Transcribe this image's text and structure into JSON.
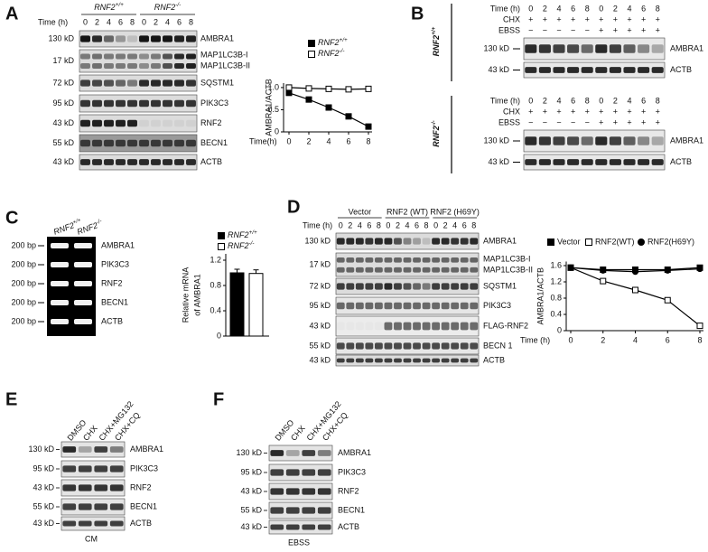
{
  "panels": {
    "A": {
      "label": "A",
      "time_label": "Time (h)",
      "groups": [
        {
          "text": "RNF2",
          "sup": "+/+"
        },
        {
          "text": "RNF2",
          "sup": "-/-"
        }
      ],
      "lanes": [
        0,
        2,
        4,
        6,
        8,
        0,
        2,
        4,
        6,
        8
      ],
      "rows": [
        {
          "size": "130 kD",
          "names": [
            "AMBRA1"
          ]
        },
        {
          "size": "17 kD",
          "names": [
            "MAP1LC3B-I",
            "MAP1LC3B-II"
          ]
        },
        {
          "size": "72 kD",
          "names": [
            "SQSTM1"
          ]
        },
        {
          "size": "95 kD",
          "names": [
            "PIK3C3"
          ]
        },
        {
          "size": "43 kD",
          "names": [
            "RNF2"
          ]
        },
        {
          "size": "55 kD",
          "names": [
            "BECN1"
          ]
        },
        {
          "size": "43 kD",
          "names": [
            "ACTB"
          ]
        }
      ]
    },
    "B": {
      "label": "B",
      "blocks": [
        {
          "genotype": {
            "text": "RNF2",
            "sup": "+/+"
          },
          "row_labels": [
            "Time (h)",
            "CHX",
            "EBSS"
          ],
          "time": [
            0,
            2,
            4,
            6,
            8,
            0,
            2,
            4,
            6,
            8
          ],
          "chx": [
            "+",
            "+",
            "+",
            "+",
            "+",
            "+",
            "+",
            "+",
            "+",
            "+"
          ],
          "ebss": [
            "−",
            "−",
            "−",
            "−",
            "−",
            "+",
            "+",
            "+",
            "+",
            "+"
          ],
          "rows": [
            {
              "size": "130 kD",
              "names": [
                "AMBRA1"
              ]
            },
            {
              "size": "43 kD",
              "names": [
                "ACTB"
              ]
            }
          ]
        },
        {
          "genotype": {
            "text": "RNF2",
            "sup": "-/-"
          },
          "row_labels": [
            "Time (h)",
            "CHX",
            "EBSS"
          ],
          "time": [
            0,
            2,
            4,
            6,
            8,
            0,
            2,
            4,
            6,
            8
          ],
          "chx": [
            "+",
            "+",
            "+",
            "+",
            "+",
            "+",
            "+",
            "+",
            "+",
            "+"
          ],
          "ebss": [
            "−",
            "−",
            "−",
            "−",
            "−",
            "+",
            "+",
            "+",
            "+",
            "+"
          ],
          "rows": [
            {
              "size": "130 kD",
              "names": [
                "AMBRA1"
              ]
            },
            {
              "size": "43 kD",
              "names": [
                "ACTB"
              ]
            }
          ]
        }
      ]
    },
    "C": {
      "label": "C",
      "lanes": [
        {
          "text": "RNF2",
          "sup": "+/+"
        },
        {
          "text": "RNF2",
          "sup": "-/-"
        }
      ],
      "rows": [
        {
          "size": "200 bp",
          "names": [
            "AMBRA1"
          ]
        },
        {
          "size": "200 bp",
          "names": [
            "PIK3C3"
          ]
        },
        {
          "size": "200 bp",
          "names": [
            "RNF2"
          ]
        },
        {
          "size": "200 bp",
          "names": [
            "BECN1"
          ]
        },
        {
          "size": "200 bp",
          "names": [
            "ACTB"
          ]
        }
      ]
    },
    "D": {
      "label": "D",
      "time_label": "Time (h)",
      "groups": [
        "Vector",
        "RNF2 (WT)",
        "RNF2 (H69Y)"
      ],
      "lanes": [
        0,
        2,
        4,
        6,
        8,
        0,
        2,
        4,
        6,
        8,
        0,
        2,
        4,
        6,
        8
      ],
      "rows": [
        {
          "size": "130 kD",
          "names": [
            "AMBRA1"
          ]
        },
        {
          "size": "17 kD",
          "names": [
            "MAP1LC3B-I",
            "MAP1LC3B-II"
          ]
        },
        {
          "size": "72 kD",
          "names": [
            "SQSTM1"
          ]
        },
        {
          "size": "95 kD",
          "names": [
            "PIK3C3"
          ]
        },
        {
          "size": "43 kD",
          "names": [
            "FLAG-RNF2"
          ]
        },
        {
          "size": "55 kD",
          "names": [
            "BECN 1"
          ]
        },
        {
          "size": "43 kD",
          "names": [
            "ACTB"
          ]
        }
      ]
    },
    "E": {
      "label": "E",
      "lanes": [
        "DMSO",
        "CHX",
        "CHX+MG132",
        "CHX+CQ"
      ],
      "condition": "CM",
      "rows": [
        {
          "size": "130 kD",
          "names": [
            "AMBRA1"
          ]
        },
        {
          "size": "95 kD",
          "names": [
            "PIK3C3"
          ]
        },
        {
          "size": "43 kD",
          "names": [
            "RNF2"
          ]
        },
        {
          "size": "55 kD",
          "names": [
            "BECN1"
          ]
        },
        {
          "size": "43 kD",
          "names": [
            "ACTB"
          ]
        }
      ]
    },
    "F": {
      "label": "F",
      "lanes": [
        "DMSO",
        "CHX",
        "CHX+MG132",
        "CHX+CQ"
      ],
      "condition": "EBSS",
      "rows": [
        {
          "size": "130 kD",
          "names": [
            "AMBRA1"
          ]
        },
        {
          "size": "95 kD",
          "names": [
            "PIK3C3"
          ]
        },
        {
          "size": "43 kD",
          "names": [
            "RNF2"
          ]
        },
        {
          "size": "55 kD",
          "names": [
            "BECN1"
          ]
        },
        {
          "size": "43 kD",
          "names": [
            "ACTB"
          ]
        }
      ]
    }
  },
  "chart_data": [
    {
      "type": "line",
      "x_label": "Time(h)",
      "y_label": "AMBRA1/ACTB",
      "x": [
        0,
        2,
        4,
        6,
        8
      ],
      "xlim": [
        0,
        8
      ],
      "xticks": [
        0,
        2,
        4,
        6,
        8
      ],
      "ylim": [
        0,
        1.1
      ],
      "yticks": [
        0,
        0.5,
        {
          "value": 1,
          "label": "1.0"
        }
      ],
      "series": [
        {
          "name": {
            "text": "RNF2",
            "sup": "+/+"
          },
          "color": "#000000",
          "fill": "#000000",
          "marker": "square",
          "values": [
            0.88,
            0.73,
            0.55,
            0.35,
            0.12
          ]
        },
        {
          "name": {
            "text": "RNF2",
            "sup": "-/-"
          },
          "color": "#000000",
          "fill": "#ffffff",
          "marker": "square",
          "values": [
            1.0,
            0.98,
            0.97,
            0.96,
            0.97
          ]
        }
      ]
    },
    {
      "type": "bar",
      "y_label": [
        "Relative mRNA",
        "of AMBRA1"
      ],
      "ylim": [
        0,
        1.3
      ],
      "yticks": [
        0,
        0.4,
        0.8,
        1.2
      ],
      "series": [
        {
          "name": {
            "text": "RNF2",
            "sup": "+/+"
          },
          "color": "#000000",
          "fill": "#000000",
          "values": [
            1.0
          ]
        },
        {
          "name": {
            "text": "RNF2",
            "sup": "-/-"
          },
          "color": "#000000",
          "fill": "#ffffff",
          "values": [
            0.99
          ]
        }
      ]
    },
    {
      "type": "line",
      "x_label": "Time (h)",
      "y_label": "AMBRA1/ACTB",
      "x": [
        0,
        2,
        4,
        6,
        8
      ],
      "xlim": [
        0,
        8
      ],
      "xticks": [
        0,
        2,
        4,
        6,
        8
      ],
      "ylim": [
        0,
        1.7
      ],
      "yticks": [
        0,
        0.4,
        0.8,
        1.2,
        1.6
      ],
      "series": [
        {
          "name": "Vector",
          "color": "#000000",
          "fill": "#000000",
          "marker": "square",
          "values": [
            1.55,
            1.5,
            1.5,
            1.5,
            1.55
          ]
        },
        {
          "name": "RNF2(WT)",
          "color": "#000000",
          "fill": "#ffffff",
          "marker": "square",
          "values": [
            1.55,
            1.22,
            1.0,
            0.75,
            0.12
          ]
        },
        {
          "name": "RNF2(H69Y)",
          "color": "#000000",
          "fill": "#000000",
          "marker": "circle",
          "values": [
            1.55,
            1.48,
            1.45,
            1.48,
            1.52
          ]
        }
      ]
    }
  ]
}
